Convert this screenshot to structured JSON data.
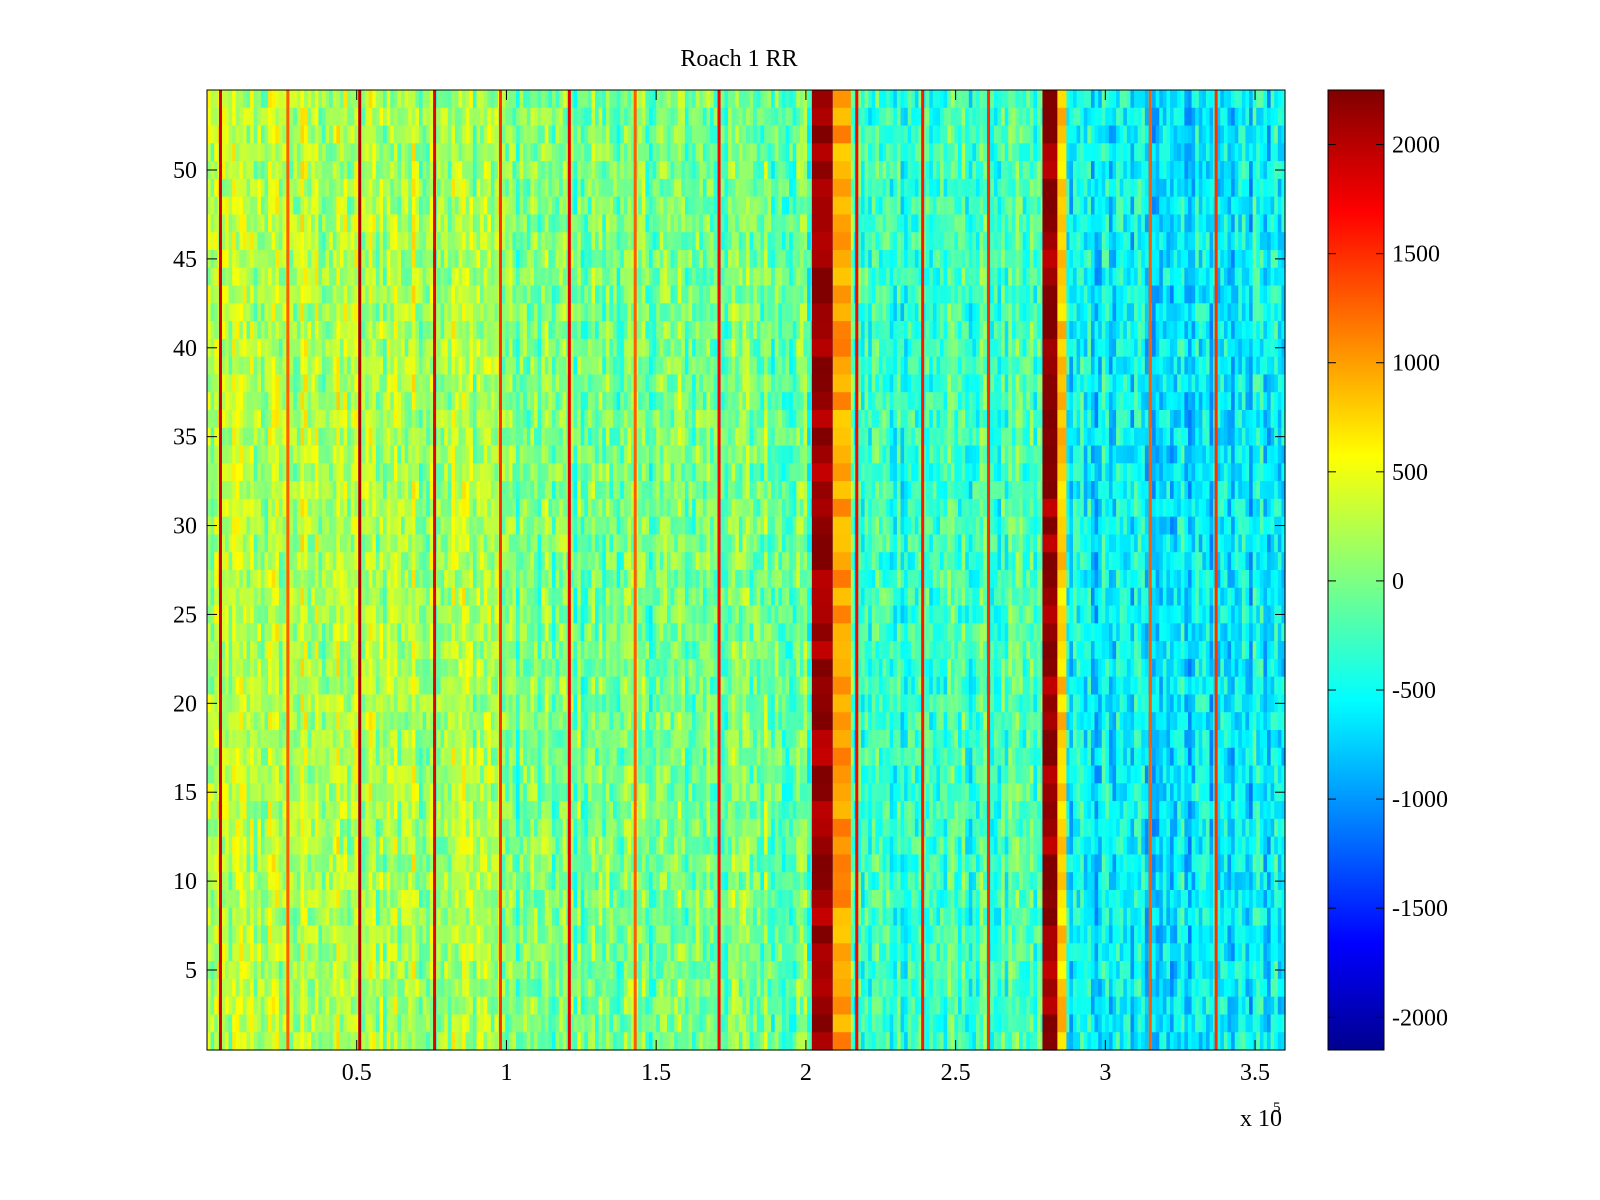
{
  "chart_data": {
    "type": "heatmap",
    "title": "Roach 1 RR",
    "xlabel": "",
    "ylabel": "",
    "x_multiplier_label": "x 10",
    "x_multiplier_exponent": "5",
    "xlim": [
      0,
      360000
    ],
    "ylim": [
      0.5,
      54.5
    ],
    "rows": 54,
    "x_ticks": [
      {
        "value": 50000,
        "label": "0.5"
      },
      {
        "value": 100000,
        "label": "1"
      },
      {
        "value": 150000,
        "label": "1.5"
      },
      {
        "value": 200000,
        "label": "2"
      },
      {
        "value": 250000,
        "label": "2.5"
      },
      {
        "value": 300000,
        "label": "3"
      },
      {
        "value": 350000,
        "label": "3.5"
      }
    ],
    "y_ticks": [
      {
        "value": 5,
        "label": "5"
      },
      {
        "value": 10,
        "label": "10"
      },
      {
        "value": 15,
        "label": "15"
      },
      {
        "value": 20,
        "label": "20"
      },
      {
        "value": 25,
        "label": "25"
      },
      {
        "value": 30,
        "label": "30"
      },
      {
        "value": 35,
        "label": "35"
      },
      {
        "value": 40,
        "label": "40"
      },
      {
        "value": 45,
        "label": "45"
      },
      {
        "value": 50,
        "label": "50"
      }
    ],
    "colorbar": {
      "colormap": "jet",
      "clim": [
        -2150,
        2250
      ],
      "ticks": [
        {
          "value": 2000,
          "label": "2000"
        },
        {
          "value": 1500,
          "label": "1500"
        },
        {
          "value": 1000,
          "label": "1000"
        },
        {
          "value": 500,
          "label": "500"
        },
        {
          "value": 0,
          "label": "0"
        },
        {
          "value": -500,
          "label": "-500"
        },
        {
          "value": -1000,
          "label": "-1000"
        },
        {
          "value": -1500,
          "label": "-1500"
        },
        {
          "value": -2000,
          "label": "-2000"
        }
      ]
    },
    "background_level_segments": [
      {
        "x_start": 0,
        "x_end": 100000,
        "mean_value": 250
      },
      {
        "x_start": 100000,
        "x_end": 200000,
        "mean_value": 0
      },
      {
        "x_start": 200000,
        "x_end": 280000,
        "mean_value": -250
      },
      {
        "x_start": 280000,
        "x_end": 360000,
        "mean_value": -550
      }
    ],
    "noise_amplitude": 420,
    "hot_columns": [
      {
        "x": 4500,
        "value": 1900
      },
      {
        "x": 27000,
        "value": 1300
      },
      {
        "x": 51000,
        "value": 2050
      },
      {
        "x": 76000,
        "value": 1800
      },
      {
        "x": 98000,
        "value": 1500
      },
      {
        "x": 121000,
        "value": 1800
      },
      {
        "x": 143000,
        "value": 1300
      },
      {
        "x": 171000,
        "value": 1700
      },
      {
        "x": 217000,
        "value": 1700
      },
      {
        "x": 239000,
        "value": 1600
      },
      {
        "x": 261000,
        "value": 1500
      },
      {
        "x": 315000,
        "value": 1300
      },
      {
        "x": 337000,
        "value": 1500
      }
    ],
    "hot_bands": [
      {
        "x_start": 202000,
        "x_end": 209000,
        "value": 2150
      },
      {
        "x_start": 209000,
        "x_end": 215000,
        "value": 1000
      },
      {
        "x_start": 279000,
        "x_end": 284000,
        "value": 2150
      },
      {
        "x_start": 284000,
        "x_end": 287000,
        "value": 800
      }
    ]
  }
}
